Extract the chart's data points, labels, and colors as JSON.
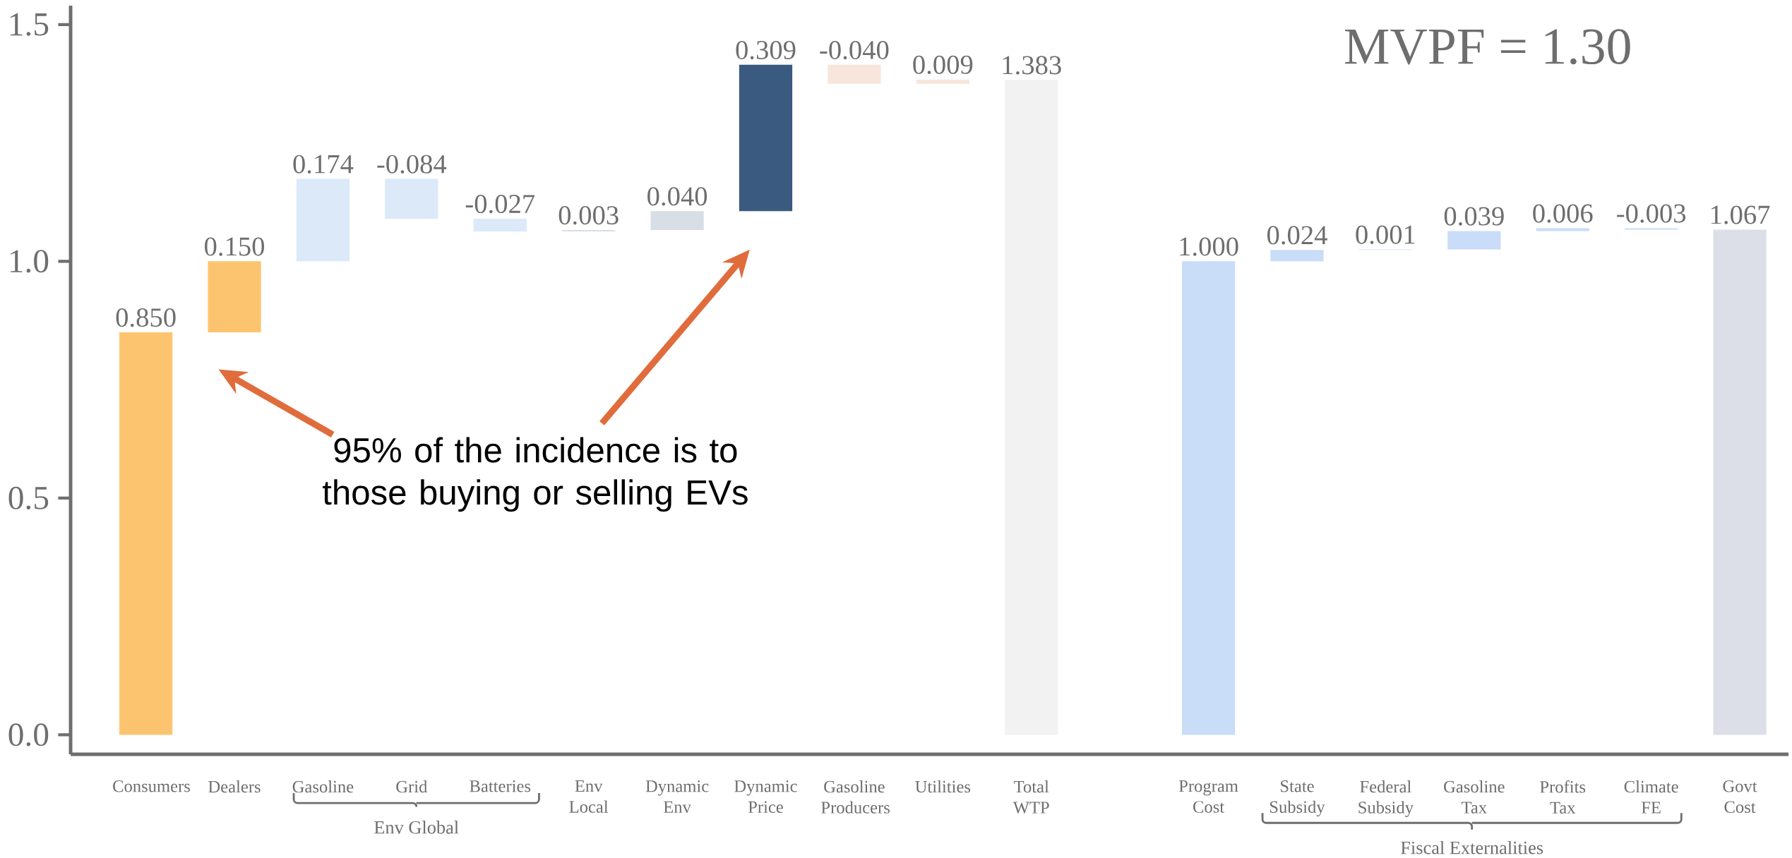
{
  "chart_data": {
    "type": "bar",
    "categories": [
      "Consumers",
      "Dealers",
      "Gasoline",
      "Grid",
      "Batteries",
      "Env Local",
      "Dynamic Env",
      "Dynamic Price",
      "Gasoline Producers",
      "Utilities",
      "Total WTP",
      null,
      "Program Cost",
      "State Subsidy",
      "Federal Subsidy",
      "Gasoline Tax",
      "Profits Tax",
      "Climate FE",
      "Govt Cost"
    ],
    "values": [
      0.85,
      0.15,
      0.174,
      -0.084,
      -0.027,
      0.003,
      0.04,
      0.309,
      -0.04,
      0.009,
      1.383,
      null,
      1.0,
      0.024,
      0.001,
      0.039,
      0.006,
      -0.003,
      1.067
    ],
    "base": [
      0,
      0.85,
      1.0,
      1.174,
      1.09,
      1.063,
      1.066,
      1.106,
      1.415,
      1.375,
      0,
      null,
      0,
      1.0,
      1.024,
      1.025,
      1.064,
      1.07,
      0
    ],
    "colors": [
      "#fdc470",
      "#fdc470",
      "#dbe9f8",
      "#dbe9f8",
      "#dbe9f8",
      "#d7dee6",
      "#d7dee6",
      "#3b5a80",
      "#f8e6dc",
      "#f8e6dc",
      "#f2f2f2",
      null,
      "#c9dcf8",
      "#c9dcf8",
      "#c9dcf8",
      "#c9dcf8",
      "#c9dcf8",
      "#c9dcf8",
      "#dcdfe7"
    ],
    "value_labels": [
      "0.850",
      "0.150",
      "0.174",
      "-0.084",
      "-0.027",
      "0.003",
      "0.040",
      "0.309",
      "-0.040",
      "0.009",
      "1.383",
      null,
      "1.000",
      "0.024",
      "0.001",
      "0.039",
      "0.006",
      "-0.003",
      "1.067"
    ],
    "ylim": [
      -0.041,
      1.54
    ],
    "yticks": [
      {
        "value": 0,
        "label": "0.0"
      },
      {
        "value": 0.5,
        "label": "0.5"
      },
      {
        "value": 1,
        "label": "1.0"
      },
      {
        "value": 1.5,
        "label": "1.5"
      }
    ],
    "annotations": [
      "MVPF = 1.30",
      "95% of the incidence is to those buying or selling EVs",
      "Env Global",
      "Fiscal Externalities"
    ]
  }
}
